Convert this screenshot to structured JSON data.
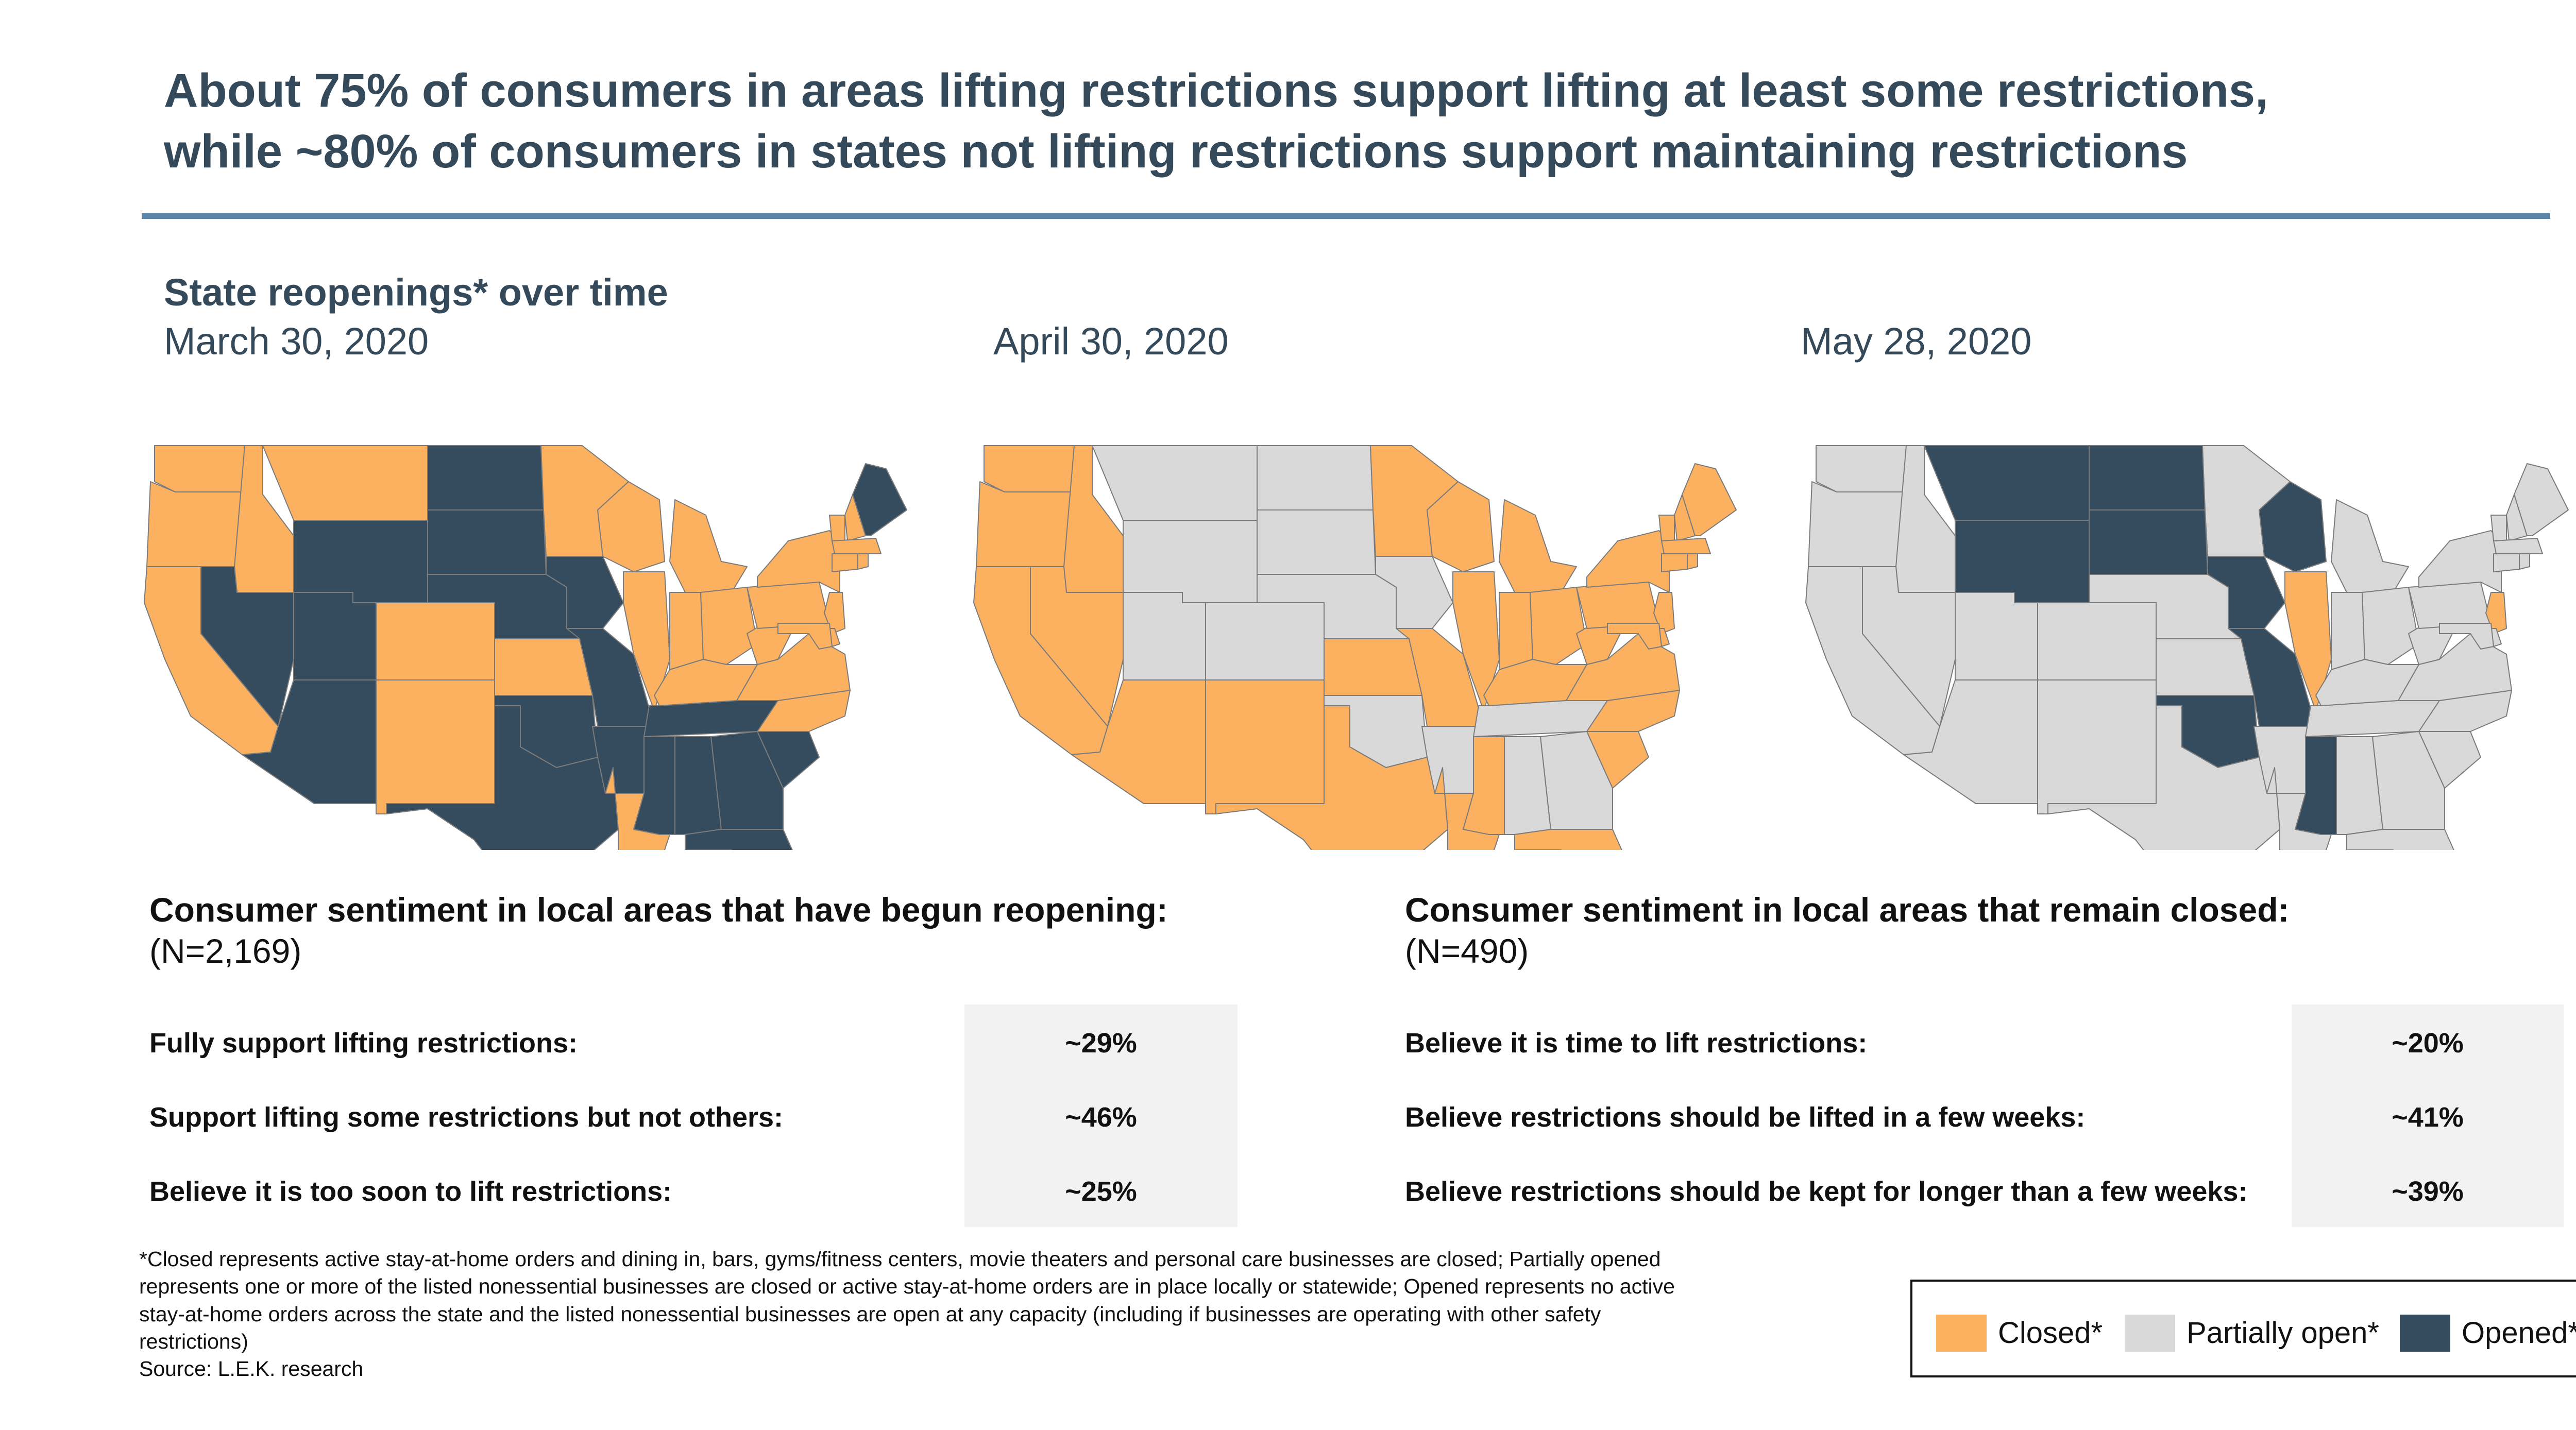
{
  "headline": {
    "line1": "About 75% of consumers in areas lifting restrictions support lifting at least some restrictions,",
    "line2": "while ~80% of consumers in states not lifting restrictions support maintaining restrictions"
  },
  "section_title": "State reopenings* over time",
  "colors": {
    "closed": "#fbb160",
    "partially_open": "#d9d9d9",
    "opened": "#344c5d",
    "state_border": "#7b7b7b"
  },
  "maps": [
    {
      "date": "March 30, 2020",
      "states": {
        "WA": "closed",
        "OR": "closed",
        "CA": "closed",
        "ID": "closed",
        "MT": "closed",
        "WY": "opened",
        "NV": "opened",
        "UT": "opened",
        "AZ": "opened",
        "CO": "closed",
        "NM": "closed",
        "ND": "opened",
        "SD": "opened",
        "NE": "opened",
        "KS": "closed",
        "OK": "opened",
        "TX": "opened",
        "MN": "closed",
        "IA": "opened",
        "MO": "opened",
        "AR": "opened",
        "LA": "closed",
        "WI": "closed",
        "IL": "closed",
        "MI": "closed",
        "IN": "closed",
        "OH": "closed",
        "KY": "closed",
        "TN": "opened",
        "MS": "opened",
        "AL": "opened",
        "GA": "opened",
        "FL": "opened",
        "SC": "opened",
        "NC": "closed",
        "VA": "closed",
        "WV": "closed",
        "PA": "closed",
        "NY": "closed",
        "VT": "closed",
        "NH": "closed",
        "ME": "opened",
        "MA": "closed",
        "CT": "closed",
        "RI": "closed",
        "NJ": "closed",
        "DE": "closed",
        "MD": "closed"
      }
    },
    {
      "date": "April 30, 2020",
      "states": {
        "WA": "closed",
        "OR": "closed",
        "CA": "closed",
        "ID": "closed",
        "MT": "partially_open",
        "WY": "partially_open",
        "NV": "closed",
        "UT": "partially_open",
        "AZ": "closed",
        "CO": "partially_open",
        "NM": "closed",
        "ND": "partially_open",
        "SD": "partially_open",
        "NE": "partially_open",
        "KS": "closed",
        "OK": "partially_open",
        "TX": "closed",
        "MN": "closed",
        "IA": "partially_open",
        "MO": "closed",
        "AR": "partially_open",
        "LA": "closed",
        "WI": "closed",
        "IL": "closed",
        "MI": "closed",
        "IN": "closed",
        "OH": "closed",
        "KY": "closed",
        "TN": "partially_open",
        "MS": "closed",
        "AL": "partially_open",
        "GA": "partially_open",
        "FL": "closed",
        "SC": "closed",
        "NC": "closed",
        "VA": "closed",
        "WV": "closed",
        "PA": "closed",
        "NY": "closed",
        "VT": "closed",
        "NH": "closed",
        "ME": "closed",
        "MA": "closed",
        "CT": "closed",
        "RI": "closed",
        "NJ": "closed",
        "DE": "closed",
        "MD": "closed"
      }
    },
    {
      "date": "May 28, 2020",
      "states": {
        "WA": "partially_open",
        "OR": "partially_open",
        "CA": "partially_open",
        "ID": "partially_open",
        "MT": "opened",
        "WY": "opened",
        "NV": "partially_open",
        "UT": "partially_open",
        "AZ": "partially_open",
        "CO": "partially_open",
        "NM": "partially_open",
        "ND": "opened",
        "SD": "opened",
        "NE": "partially_open",
        "KS": "partially_open",
        "OK": "opened",
        "TX": "partially_open",
        "MN": "partially_open",
        "IA": "opened",
        "MO": "opened",
        "AR": "partially_open",
        "LA": "partially_open",
        "WI": "opened",
        "IL": "closed",
        "MI": "partially_open",
        "IN": "partially_open",
        "OH": "partially_open",
        "KY": "partially_open",
        "TN": "partially_open",
        "MS": "opened",
        "AL": "partially_open",
        "GA": "partially_open",
        "FL": "partially_open",
        "SC": "partially_open",
        "NC": "partially_open",
        "VA": "partially_open",
        "WV": "partially_open",
        "PA": "partially_open",
        "NY": "partially_open",
        "VT": "partially_open",
        "NH": "partially_open",
        "ME": "partially_open",
        "MA": "partially_open",
        "CT": "partially_open",
        "RI": "partially_open",
        "NJ": "closed",
        "DE": "partially_open",
        "MD": "partially_open"
      }
    }
  ],
  "reopening_panel": {
    "title": "Consumer sentiment in local areas that have begun reopening:",
    "n": "(N=2,169)",
    "rows": [
      {
        "label": "Fully support lifting restrictions:",
        "value": "~29%"
      },
      {
        "label": "Support lifting some restrictions but not others:",
        "value": "~46%"
      },
      {
        "label": "Believe it is too soon to lift restrictions:",
        "value": "~25%"
      }
    ]
  },
  "closed_panel": {
    "title": "Consumer sentiment in local areas that remain closed:",
    "n": "(N=490)",
    "rows": [
      {
        "label": "Believe it is time to lift restrictions:",
        "value": "~20%"
      },
      {
        "label": "Believe restrictions should be lifted in a few weeks:",
        "value": "~41%"
      },
      {
        "label": "Believe restrictions should be kept for longer than a few weeks:",
        "value": "~39%"
      }
    ]
  },
  "footnote": {
    "lines": [
      "*Closed represents active stay-at-home orders and dining in, bars, gyms/fitness centers, movie theaters and personal care businesses are closed; Partially opened",
      "represents one or more of the listed nonessential businesses are closed or active stay-at-home orders are in place locally or statewide; Opened represents no active",
      "stay-at-home orders across the state and the listed nonessential businesses are open at any capacity (including if businesses are operating with other safety",
      "restrictions)"
    ],
    "source": "Source:  L.E.K. research"
  },
  "legend": {
    "closed": "Closed*",
    "partially_open": "Partially open*",
    "opened": "Opened*"
  }
}
